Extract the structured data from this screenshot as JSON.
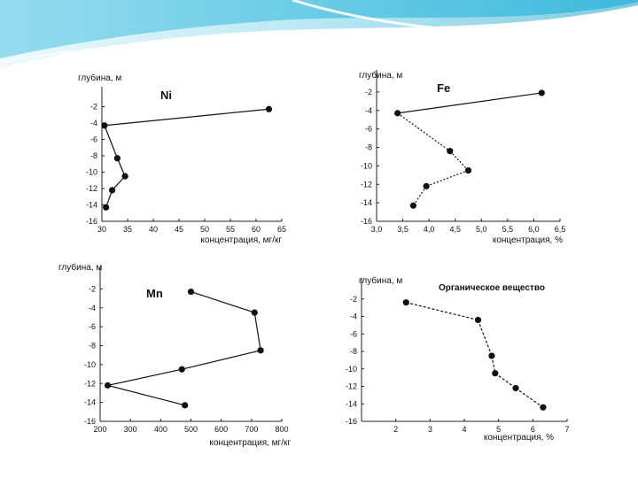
{
  "slide": {
    "accent_colors": [
      "#1aa0c8",
      "#7fd4ea",
      "#d6f1f8"
    ]
  },
  "chart_data": [
    {
      "type": "line",
      "title": "Ni",
      "ylabel": "глубина, м",
      "xlabel": "концентрация, мг/кг",
      "xlim": [
        30,
        65
      ],
      "ylim": [
        -16,
        0
      ],
      "x_ticks": [
        "30",
        "35",
        "40",
        "45",
        "50",
        "55",
        "60",
        "65"
      ],
      "x_tick_values": [
        30,
        35,
        40,
        45,
        50,
        55,
        60,
        65
      ],
      "y_ticks": [
        "-2",
        "-4",
        "-6",
        "-8",
        "-10",
        "-12",
        "-14",
        "-16"
      ],
      "y_tick_values": [
        -2,
        -4,
        -6,
        -8,
        -10,
        -12,
        -14,
        -16
      ],
      "line_style": "solid",
      "points": [
        {
          "x": 62.5,
          "y": -2.3
        },
        {
          "x": 30.5,
          "y": -4.3
        },
        {
          "x": 33.0,
          "y": -8.3
        },
        {
          "x": 34.5,
          "y": -10.5
        },
        {
          "x": 32.0,
          "y": -12.2
        },
        {
          "x": 30.8,
          "y": -14.3
        }
      ]
    },
    {
      "type": "line",
      "title": "Fe",
      "ylabel": "глубина, м",
      "xlabel": "концентрация, %",
      "xlim": [
        3.0,
        6.5
      ],
      "ylim": [
        -16,
        0
      ],
      "x_ticks": [
        "3,0",
        "3,5",
        "4,0",
        "4,5",
        "5,0",
        "5,5",
        "6,0",
        "6,5"
      ],
      "x_tick_values": [
        3.0,
        3.5,
        4.0,
        4.5,
        5.0,
        5.5,
        6.0,
        6.5
      ],
      "y_ticks": [
        "-2",
        "-4",
        "-6",
        "-8",
        "-10",
        "-12",
        "-14",
        "-16"
      ],
      "y_tick_values": [
        -2,
        -4,
        -6,
        -8,
        -10,
        -12,
        -14,
        -16
      ],
      "line_style": "solid-then-dotted",
      "points": [
        {
          "x": 6.15,
          "y": -2.1
        },
        {
          "x": 3.4,
          "y": -4.3
        },
        {
          "x": 4.4,
          "y": -8.4
        },
        {
          "x": 4.75,
          "y": -10.5
        },
        {
          "x": 3.95,
          "y": -12.2
        },
        {
          "x": 3.7,
          "y": -14.3
        }
      ]
    },
    {
      "type": "line",
      "title": "Mn",
      "ylabel": "глубина, м",
      "xlabel": "концентрация, мг/кг",
      "xlim": [
        200,
        800
      ],
      "ylim": [
        -16,
        0
      ],
      "x_ticks": [
        "200",
        "300",
        "400",
        "500",
        "600",
        "700",
        "800"
      ],
      "x_tick_values": [
        200,
        300,
        400,
        500,
        600,
        700,
        800
      ],
      "y_ticks": [
        "-2",
        "-4",
        "-6",
        "-8",
        "-10",
        "-12",
        "-14",
        "-16"
      ],
      "y_tick_values": [
        -2,
        -4,
        -6,
        -8,
        -10,
        -12,
        -14,
        -16
      ],
      "line_style": "solid",
      "points": [
        {
          "x": 500,
          "y": -2.3
        },
        {
          "x": 710,
          "y": -4.5
        },
        {
          "x": 730,
          "y": -8.5
        },
        {
          "x": 470,
          "y": -10.5
        },
        {
          "x": 225,
          "y": -12.2
        },
        {
          "x": 480,
          "y": -14.3
        }
      ]
    },
    {
      "type": "line",
      "title": "Органическое вещество",
      "ylabel": "глубина, м",
      "xlabel": "концентрация, %",
      "xlim": [
        1,
        7
      ],
      "ylim": [
        -16,
        0
      ],
      "x_ticks": [
        "2",
        "3",
        "4",
        "5",
        "6",
        "7"
      ],
      "x_tick_values": [
        2,
        3,
        4,
        5,
        6,
        7
      ],
      "y_ticks": [
        "-2",
        "-4",
        "-6",
        "-8",
        "-10",
        "-12",
        "-14",
        "-16"
      ],
      "y_tick_values": [
        -2,
        -4,
        -6,
        -8,
        -10,
        -12,
        -14,
        -16
      ],
      "line_style": "dashed",
      "points": [
        {
          "x": 2.3,
          "y": -2.4
        },
        {
          "x": 4.4,
          "y": -4.4
        },
        {
          "x": 4.8,
          "y": -8.5
        },
        {
          "x": 4.9,
          "y": -10.5
        },
        {
          "x": 5.5,
          "y": -12.2
        },
        {
          "x": 6.3,
          "y": -14.4
        }
      ]
    }
  ]
}
